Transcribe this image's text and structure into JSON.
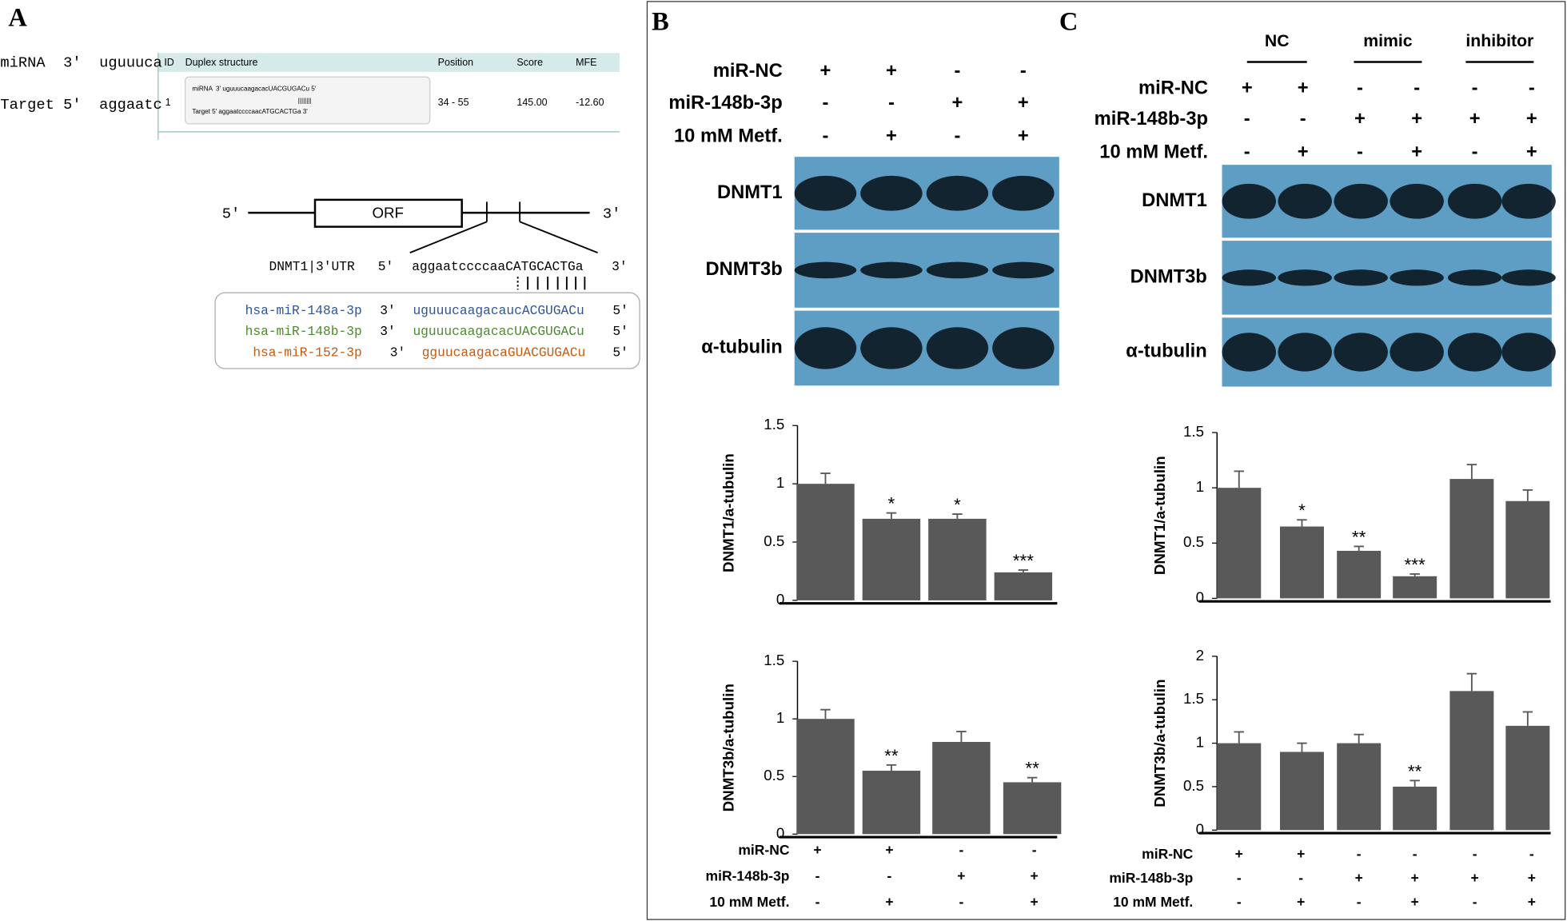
{
  "panel_a": {
    "label": "A",
    "snippet": [
      "miRNA  3'  uguuuca",
      "Target 5'  aggaatc"
    ],
    "table": {
      "headers": [
        "ID",
        "Duplex structure",
        "Position",
        "Score",
        "MFE"
      ],
      "id": "1",
      "duplex": [
        "miRNA  3' uguuucaagacacUACGUGACu 5'",
        "||||||||",
        "Target 5' aggaatccccaacATGCACTGa 3'"
      ],
      "position": "34 - 55",
      "score": "145.00",
      "mfe": "-12.60"
    },
    "diagram": {
      "five": "5'",
      "orf": "ORF",
      "three": "3'",
      "utr_label": "DNMT1|3'UTR",
      "utr_5": "5'",
      "utr_seq": "aggaatccccaaCATGCACTGa",
      "utr_3": "3'"
    },
    "mirnas": [
      {
        "name": "hsa-miR-148a-3p",
        "end3": "3'",
        "seq": "uguuucaagacaucACGUGACu",
        "end5": "5'",
        "color": "#2f5597"
      },
      {
        "name": "hsa-miR-148b-3p",
        "end3": "3'",
        "seq": "uguuucaagacacUACGUGACu",
        "end5": "5'",
        "color": "#4e8a2e"
      },
      {
        "name": "hsa-miR-152-3p",
        "end3": "3'",
        "seq": "gguucaagacaGUACGUGACu",
        "end5": "5'",
        "color": "#c55a11"
      }
    ]
  },
  "panel_b": {
    "label": "B",
    "conditions": [
      {
        "name": "miR-NC",
        "signs": [
          "+",
          "+",
          "-",
          "-"
        ]
      },
      {
        "name": "miR-148b-3p",
        "signs": [
          "-",
          "-",
          "+",
          "+"
        ]
      },
      {
        "name": "10 mM Metf.",
        "signs": [
          "-",
          "+",
          "-",
          "+"
        ]
      }
    ],
    "blots": [
      "DNMT1",
      "DNMT3b",
      "α-tubulin"
    ],
    "bar_conditions": [
      {
        "name": "miR-NC",
        "signs": [
          "+",
          "+",
          "-",
          "-"
        ]
      },
      {
        "name": "miR-148b-3p",
        "signs": [
          "-",
          "-",
          "+",
          "+"
        ]
      },
      {
        "name": "10 mM Metf.",
        "signs": [
          "-",
          "+",
          "-",
          "+"
        ]
      }
    ]
  },
  "panel_c": {
    "label": "C",
    "groups": [
      "NC",
      "mimic",
      "inhibitor"
    ],
    "conditions": [
      {
        "name": "miR-NC",
        "signs": [
          "+",
          "+",
          "-",
          "-",
          "-",
          "-"
        ]
      },
      {
        "name": "miR-148b-3p",
        "signs": [
          "-",
          "-",
          "+",
          "+",
          "+",
          "+"
        ]
      },
      {
        "name": "10 mM Metf.",
        "signs": [
          "-",
          "+",
          "-",
          "+",
          "-",
          "+"
        ]
      }
    ],
    "blots": [
      "DNMT1",
      "DNMT3b",
      "α-tubulin"
    ],
    "bar_conditions": [
      {
        "name": "miR-NC",
        "signs": [
          "+",
          "+",
          "-",
          "-",
          "-",
          "-"
        ]
      },
      {
        "name": "miR-148b-3p",
        "signs": [
          "-",
          "-",
          "+",
          "+",
          "+",
          "+"
        ]
      },
      {
        "name": "10 mM Metf.",
        "signs": [
          "-",
          "+",
          "-",
          "+",
          "-",
          "+"
        ]
      }
    ]
  },
  "chart_data": [
    {
      "type": "bar",
      "y_label": "DNMT1/a-tubulin",
      "values": [
        1.0,
        0.7,
        0.7,
        0.24
      ],
      "errors": [
        0.09,
        0.05,
        0.04,
        0.02
      ],
      "color": "#595959",
      "ylim": [
        0,
        1.5
      ],
      "yticks": [
        0,
        0.5,
        1,
        1.5
      ],
      "annotations": [
        {
          "index": 1,
          "text": "*"
        },
        {
          "index": 2,
          "text": "*"
        },
        {
          "index": 3,
          "text": "***"
        }
      ]
    },
    {
      "type": "bar",
      "y_label": "DNMT3b/a-tubulin",
      "values": [
        1.0,
        0.55,
        0.8,
        0.45
      ],
      "errors": [
        0.08,
        0.05,
        0.09,
        0.04
      ],
      "color": "#595959",
      "ylim": [
        0,
        1.5
      ],
      "yticks": [
        0,
        0.5,
        1,
        1.5
      ],
      "annotations": [
        {
          "index": 1,
          "text": "**"
        },
        {
          "index": 3,
          "text": "**"
        }
      ]
    },
    {
      "type": "bar",
      "y_label": "DNMT1/a-tubulin",
      "values": [
        1.0,
        0.65,
        0.43,
        0.2,
        1.08,
        0.88
      ],
      "errors": [
        0.15,
        0.06,
        0.04,
        0.02,
        0.13,
        0.1
      ],
      "color": "#595959",
      "ylim": [
        0,
        1.5
      ],
      "yticks": [
        0,
        0.5,
        1,
        1.5
      ],
      "annotations": [
        {
          "index": 1,
          "text": "*"
        },
        {
          "index": 2,
          "text": "**"
        },
        {
          "index": 3,
          "text": "***"
        }
      ]
    },
    {
      "type": "bar",
      "y_label": "DNMT3b/a-tubulin",
      "values": [
        1.0,
        0.9,
        1.0,
        0.5,
        1.6,
        1.2
      ],
      "errors": [
        0.13,
        0.1,
        0.1,
        0.07,
        0.2,
        0.16
      ],
      "color": "#595959",
      "ylim": [
        0,
        2
      ],
      "yticks": [
        0,
        0.5,
        1,
        1.5,
        2
      ],
      "annotations": [
        {
          "index": 3,
          "text": "**"
        }
      ]
    }
  ]
}
